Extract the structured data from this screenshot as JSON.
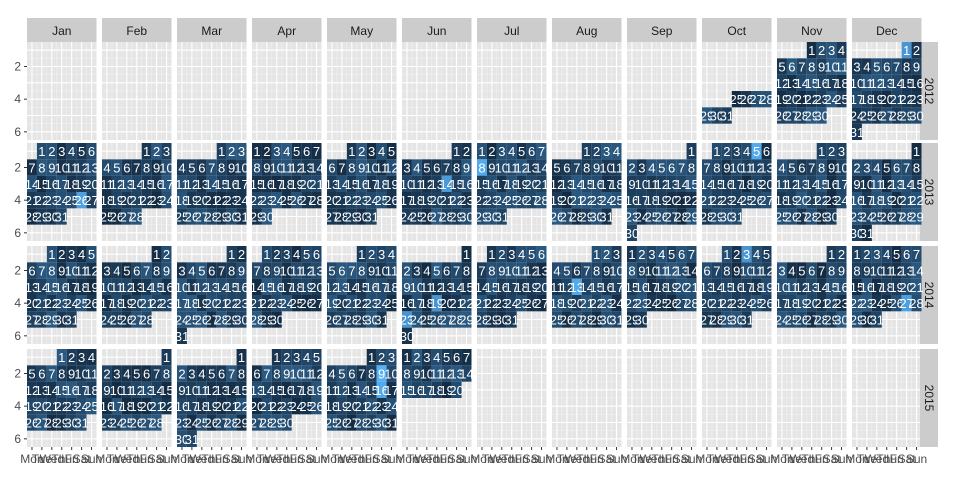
{
  "chart_data": {
    "type": "heatmap",
    "title": "",
    "xlabel": "",
    "ylabel": "",
    "months": [
      "Jan",
      "Feb",
      "Mar",
      "Apr",
      "May",
      "Jun",
      "Jul",
      "Aug",
      "Sep",
      "Oct",
      "Nov",
      "Dec"
    ],
    "years": [
      "2012",
      "2013",
      "2014",
      "2015"
    ],
    "weekday_tick_labels": [
      "Mon",
      "Tue",
      "Wed",
      "Thu",
      "Fri",
      "Sat",
      "Sun"
    ],
    "y_ticks": [
      2,
      4,
      6
    ],
    "ylim": [
      0.5,
      6.5
    ],
    "date_range": [
      "2012-10-25",
      "2015-06-20"
    ],
    "grid": true,
    "colors": {
      "panel_background": "#e5e5e5",
      "gridline": "#ffffff",
      "strip_background": "#cccccc",
      "tile_low": "#132b43",
      "tile_high": "#56b1f7",
      "day_label": "#ffffff"
    },
    "cell_value_note": "tile fill intensity per day (light = higher)",
    "bright_days": [
      "2013-10-05",
      "2013-07-08",
      "2013-06-14",
      "2014-08-13",
      "2014-06-19",
      "2014-06-23",
      "2014-10-03",
      "2014-12-27",
      "2015-05-09",
      "2015-05-16",
      "2012-12-01",
      "2013-01-26"
    ]
  }
}
